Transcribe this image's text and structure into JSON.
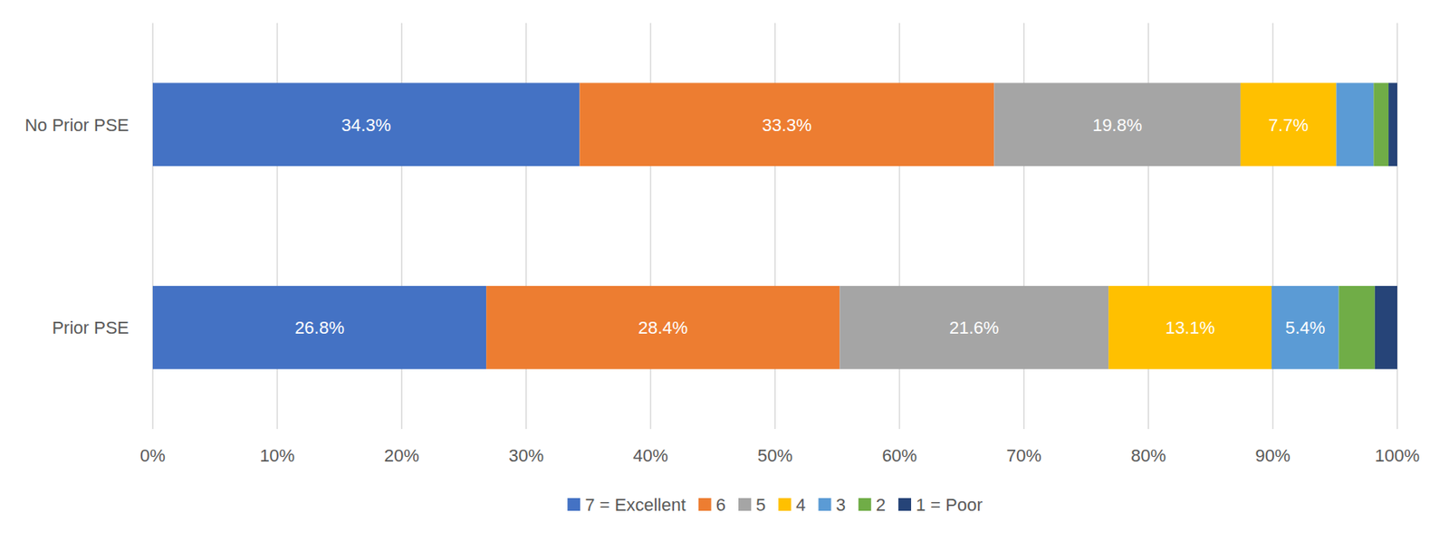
{
  "chart_data": {
    "type": "bar",
    "orientation": "horizontal",
    "stacked": true,
    "categories": [
      "No Prior PSE",
      "Prior PSE"
    ],
    "series": [
      {
        "name": "7 = Excellent",
        "color": "#4472c4",
        "values": [
          34.3,
          26.8
        ],
        "value_labels": [
          "34.3%",
          "26.8%"
        ]
      },
      {
        "name": "6",
        "color": "#ed7d31",
        "values": [
          33.3,
          28.4
        ],
        "value_labels": [
          "33.3%",
          "28.4%"
        ]
      },
      {
        "name": "5",
        "color": "#a5a5a5",
        "values": [
          19.8,
          21.6
        ],
        "value_labels": [
          "19.8%",
          "21.6%"
        ]
      },
      {
        "name": "4",
        "color": "#ffc000",
        "values": [
          7.7,
          13.1
        ],
        "value_labels": [
          "7.7%",
          "13.1%"
        ]
      },
      {
        "name": "3",
        "color": "#5b9bd5",
        "values": [
          3.0,
          5.4
        ],
        "value_labels": [
          null,
          "5.4%"
        ]
      },
      {
        "name": "2",
        "color": "#70ad47",
        "values": [
          1.2,
          2.9
        ],
        "value_labels": [
          null,
          null
        ]
      },
      {
        "name": "1 = Poor",
        "color": "#264478",
        "values": [
          0.7,
          1.8
        ],
        "value_labels": [
          null,
          null
        ]
      }
    ],
    "xlim": [
      0,
      100
    ],
    "xticks": [
      {
        "value": 0,
        "label": "0%"
      },
      {
        "value": 10,
        "label": "10%"
      },
      {
        "value": 20,
        "label": "20%"
      },
      {
        "value": 30,
        "label": "30%"
      },
      {
        "value": 40,
        "label": "40%"
      },
      {
        "value": 50,
        "label": "50%"
      },
      {
        "value": 60,
        "label": "60%"
      },
      {
        "value": 70,
        "label": "70%"
      },
      {
        "value": 80,
        "label": "80%"
      },
      {
        "value": 90,
        "label": "90%"
      },
      {
        "value": 100,
        "label": "100%"
      }
    ],
    "grid": true,
    "data_labels": true,
    "legend": "bottom"
  }
}
